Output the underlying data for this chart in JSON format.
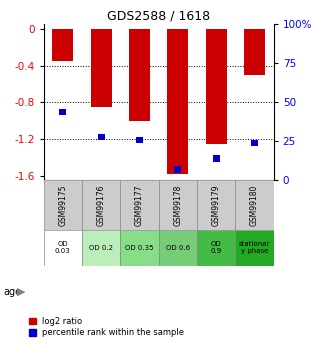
{
  "title": "GDS2588 / 1618",
  "samples": [
    "GSM99175",
    "GSM99176",
    "GSM99177",
    "GSM99178",
    "GSM99179",
    "GSM99180"
  ],
  "log2_ratios": [
    -0.35,
    -0.85,
    -1.0,
    -1.58,
    -1.25,
    -0.5
  ],
  "percentile_ranks": [
    44,
    28,
    26,
    7,
    14,
    24
  ],
  "bar_color": "#cc0000",
  "blue_color": "#0000cc",
  "ylim_left": [
    -1.65,
    0.05
  ],
  "ylim_right": [
    0,
    100
  ],
  "yticks_left": [
    0.0,
    -0.4,
    -0.8,
    -1.2,
    -1.6
  ],
  "yticks_right": [
    0,
    25,
    50,
    75,
    100
  ],
  "ytick_labels_right": [
    "0",
    "25",
    "50",
    "75",
    "100%"
  ],
  "age_labels": [
    "OD\n0.03",
    "OD 0.2",
    "OD 0.35",
    "OD 0.6",
    "OD\n0.9",
    "stationar\ny phase"
  ],
  "age_colors": [
    "#ffffff",
    "#bbeebb",
    "#88dd88",
    "#77cc77",
    "#44bb44",
    "#22aa22"
  ],
  "sample_bg_color": "#cccccc",
  "bar_width": 0.55,
  "blue_bar_width": 0.18
}
